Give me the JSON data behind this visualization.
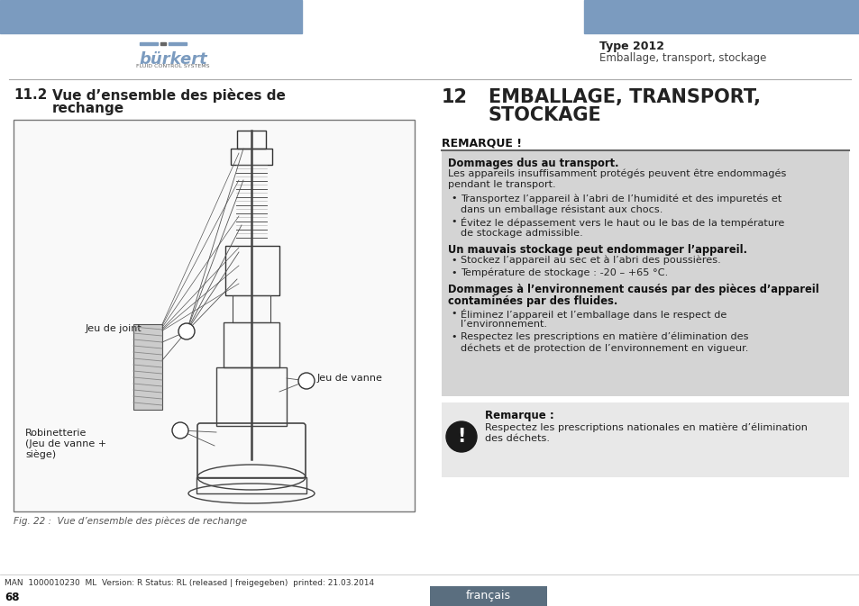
{
  "page_bg": "#ffffff",
  "header_bar_color": "#7b9bbf",
  "logo_text": "bürkert",
  "logo_sub": "FLUID CONTROL SYSTEMS",
  "type_label": "Type 2012",
  "subtitle_header": "Emballage, transport, stockage",
  "left_section_title_num": "11.2",
  "fig_caption": "Fig. 22 :  Vue d’ensemble des pièces de rechange",
  "right_section_num": "12",
  "remarque_label": "REMARQUE !",
  "gray_box_color": "#d4d4d4",
  "note_box_color": "#e8e8e8",
  "box1_title": "Dommages dus au transport.",
  "box1_body_lines": [
    "Les appareils insuffisamment protégés peuvent être endommagés",
    "pendant le transport."
  ],
  "box1_bullets": [
    [
      "Transportez l’appareil à l’abri de l’humidité et des impuretés et",
      "dans un emballage résistant aux chocs."
    ],
    [
      "Évitez le dépassement vers le haut ou le bas de la température",
      "de stockage admissible."
    ]
  ],
  "box2_title": "Un mauvais stockage peut endommager l’appareil.",
  "box2_bullets": [
    [
      "Stockez l’appareil au sec et à l’abri des poussières."
    ],
    [
      "Température de stockage : -20 – +65 °C."
    ]
  ],
  "box3_title_lines": [
    "Dommages à l’environnement causés par des pièces d’appareil",
    "contaminées par des fluides."
  ],
  "box3_bullets": [
    [
      "Éliminez l’appareil et l’emballage dans le respect de",
      "l’environnement."
    ],
    [
      "Respectez les prescriptions en matière d’élimination des",
      "déchets et de protection de l’environnement en vigueur."
    ]
  ],
  "note_title": "Remarque :",
  "note_body_lines": [
    "Respectez les prescriptions nationales en matière d’élimination",
    "des déchets."
  ],
  "footer_text": "MAN  1000010230  ML  Version: R Status: RL (released | freigegeben)  printed: 21.03.2014",
  "footer_page": "68",
  "footer_lang": "français",
  "footer_lang_bg": "#5a6e7f",
  "left_label1": "Jeu de joint",
  "left_label2": "Robinetterie\n(Jeu de vanne +\nsiège)",
  "right_label": "Jeu de vanne"
}
